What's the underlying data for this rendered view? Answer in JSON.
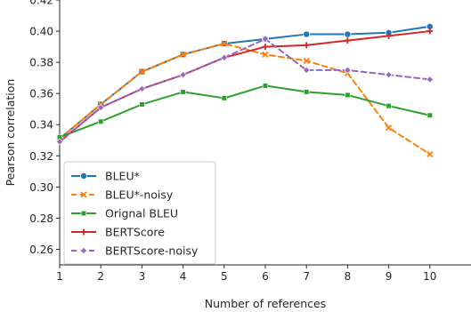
{
  "chart_data": {
    "type": "line",
    "title": "",
    "xlabel": "Number of references",
    "ylabel": "Pearson correlation",
    "x": [
      1,
      2,
      3,
      4,
      5,
      6,
      7,
      8,
      9,
      10
    ],
    "xlim": [
      1,
      11
    ],
    "ylim": [
      0.25,
      0.42
    ],
    "xticks": [
      1,
      2,
      3,
      4,
      5,
      6,
      7,
      8,
      9,
      10
    ],
    "yticks": [
      0.26,
      0.28,
      0.3,
      0.32,
      0.34,
      0.36,
      0.38,
      0.4,
      0.42
    ],
    "grid": false,
    "legend_position": "lower-left",
    "series": [
      {
        "name": "BLEU*",
        "color": "#1f77b4",
        "linestyle": "solid",
        "marker": "circle",
        "values": [
          0.331,
          0.353,
          0.374,
          0.385,
          0.392,
          0.395,
          0.398,
          0.398,
          0.399,
          0.403
        ]
      },
      {
        "name": "BLEU*-noisy",
        "color": "#ff7f0e",
        "linestyle": "dashed",
        "marker": "x",
        "values": [
          0.331,
          0.353,
          0.374,
          0.385,
          0.392,
          0.385,
          0.381,
          0.373,
          0.338,
          0.321
        ]
      },
      {
        "name": "Orignal BLEU",
        "color": "#2ca02c",
        "linestyle": "solid",
        "marker": "square",
        "values": [
          0.332,
          0.342,
          0.353,
          0.361,
          0.357,
          0.365,
          0.361,
          0.359,
          0.352,
          0.346
        ]
      },
      {
        "name": "BERTScore",
        "color": "#d62728",
        "linestyle": "solid",
        "marker": "plus",
        "values": [
          0.329,
          0.351,
          0.363,
          0.372,
          0.383,
          0.39,
          0.391,
          0.394,
          0.397,
          0.4
        ]
      },
      {
        "name": "BERTScore-noisy",
        "color": "#9467bd",
        "linestyle": "dashed",
        "marker": "diamond",
        "values": [
          0.329,
          0.351,
          0.363,
          0.372,
          0.383,
          0.395,
          0.375,
          0.375,
          0.372,
          0.369
        ]
      }
    ]
  }
}
